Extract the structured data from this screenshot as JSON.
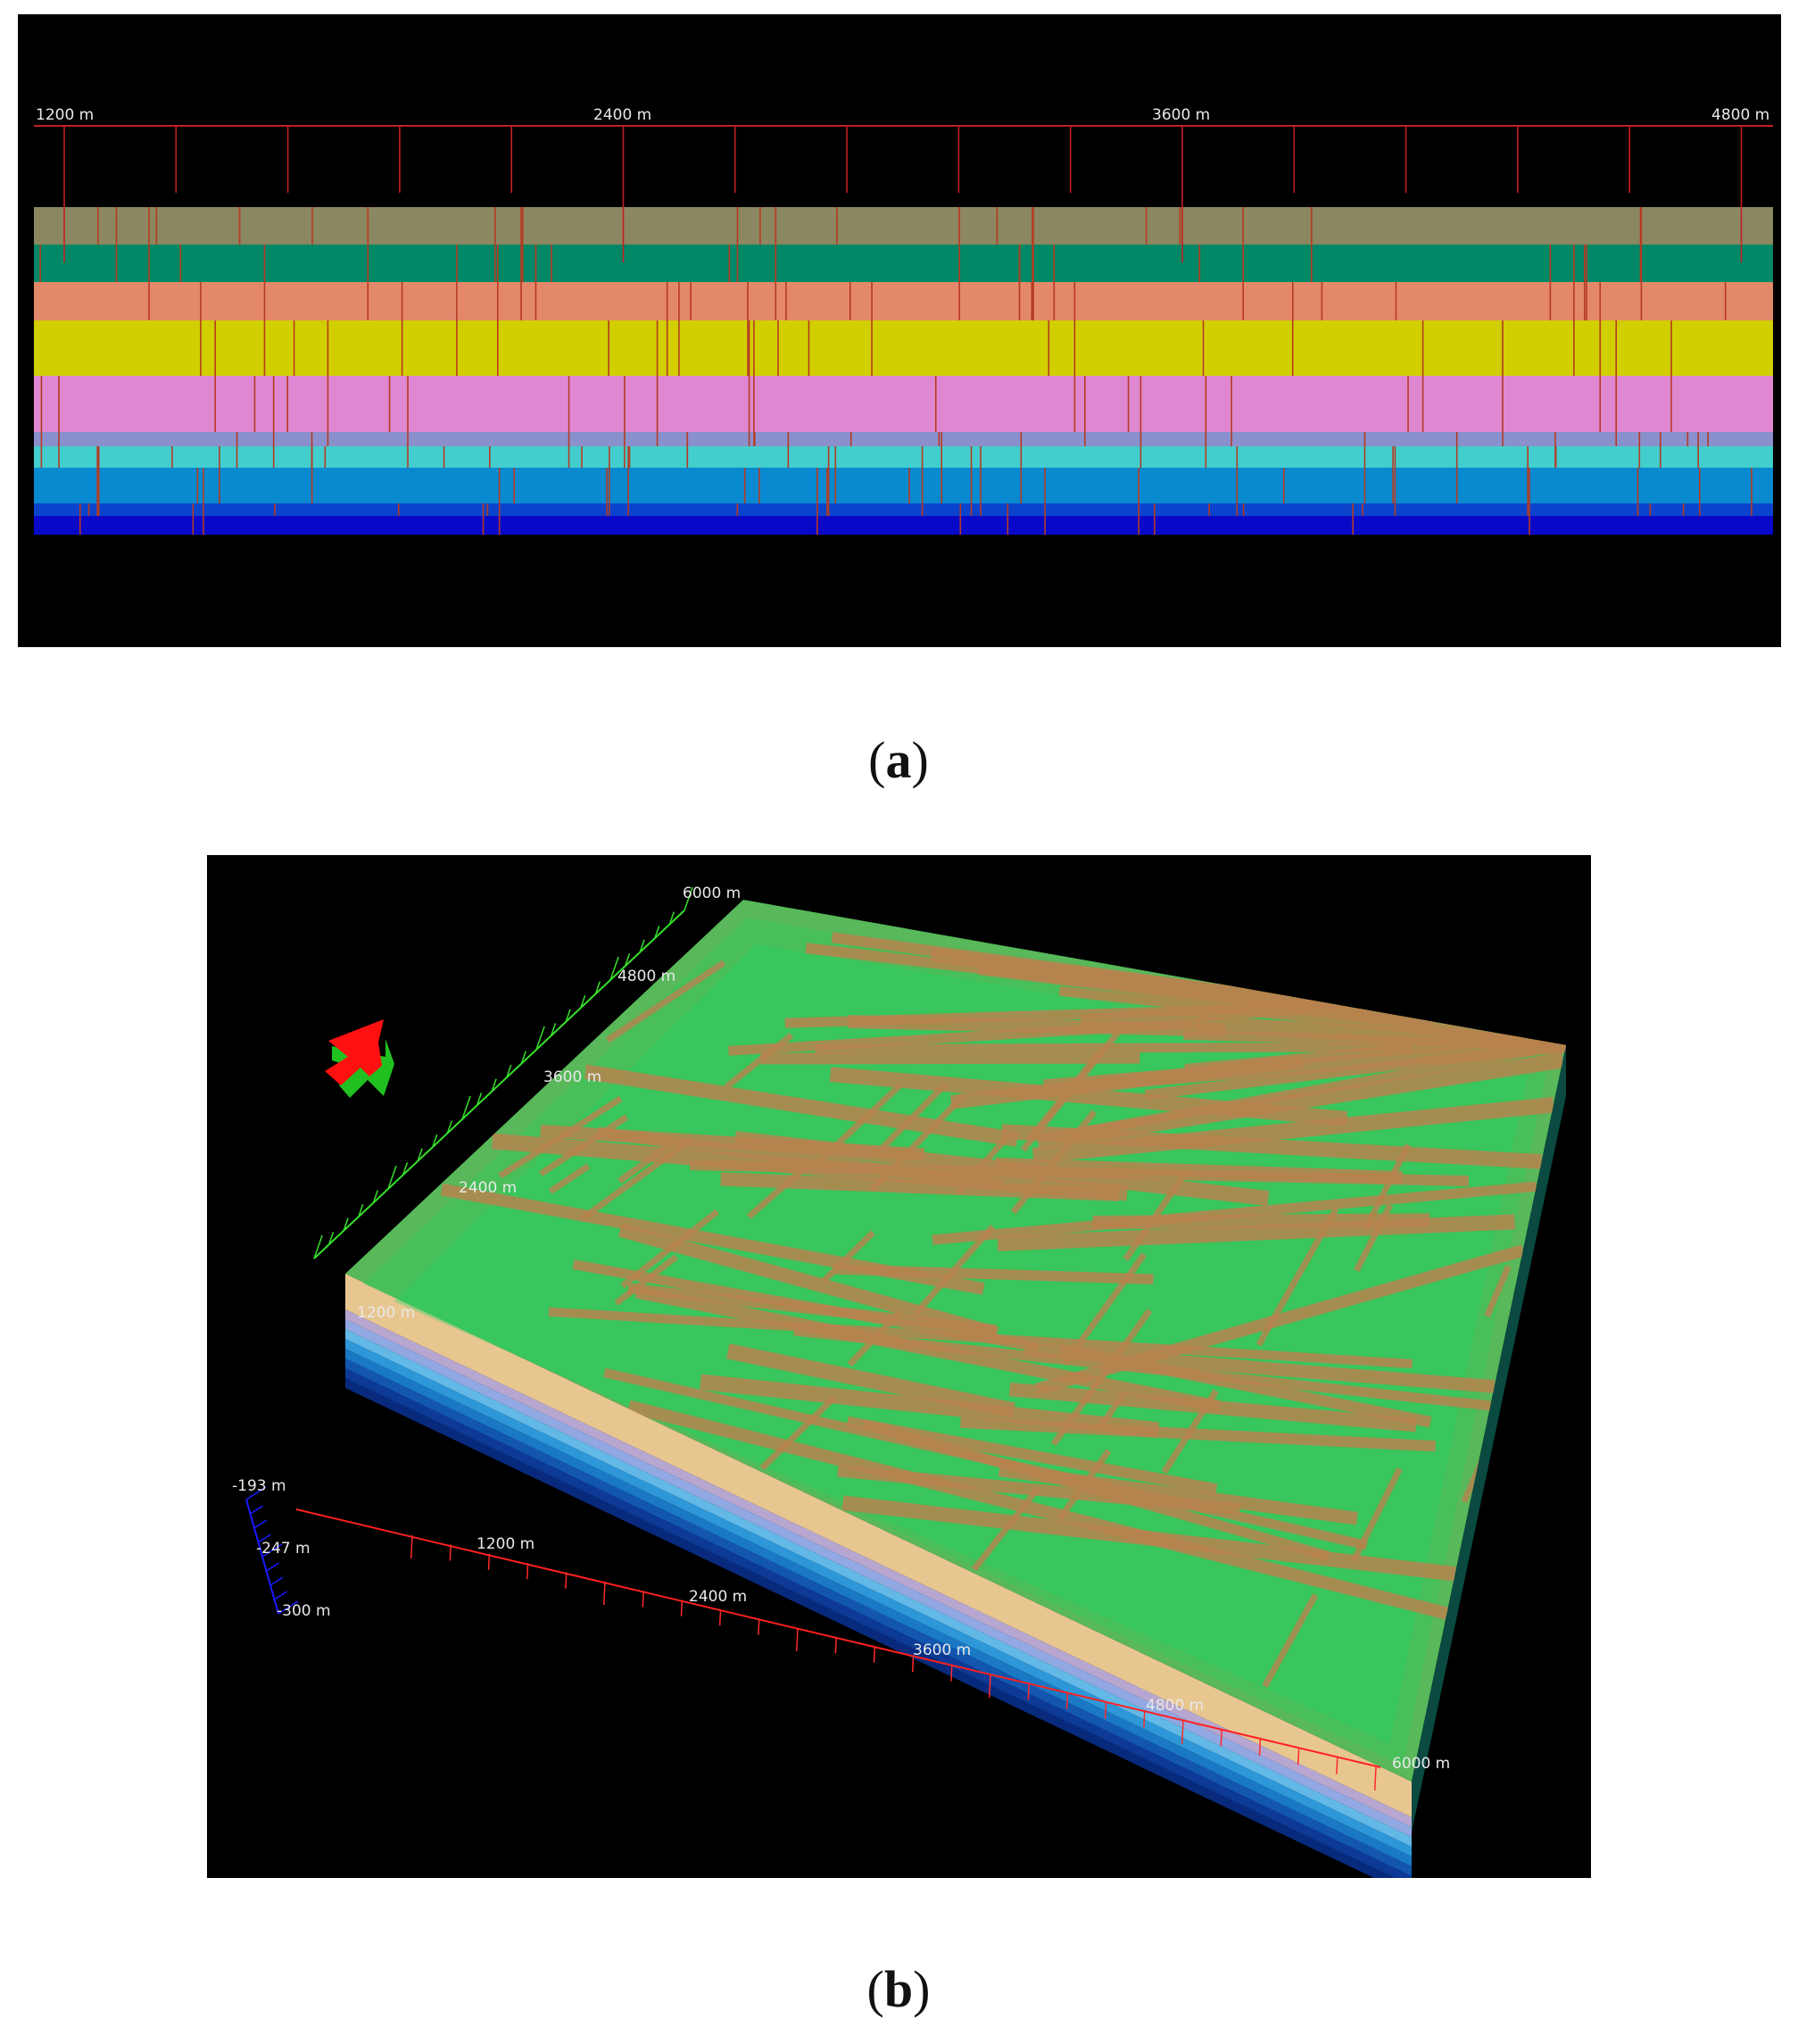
{
  "panel_a": {
    "axis_labels": [
      "1200 m",
      "2400 m",
      "3600 m",
      "4800 m"
    ],
    "layer_colors": [
      "#8b8760",
      "#008866",
      "#e3896a",
      "#d2cf00",
      "#df88d1",
      "#8a90cc",
      "#42cecd",
      "#0889d0",
      "#0a44cc",
      "#0808c8"
    ],
    "fault_color": "#b63a22"
  },
  "panel_b": {
    "y_axis_labels": [
      "1200 m",
      "2400 m",
      "3600 m",
      "4800 m",
      "6000 m"
    ],
    "x_axis_labels": [
      "1200 m",
      "2400 m",
      "3600 m",
      "4800 m",
      "6000 m"
    ],
    "z_axis_labels": [
      "-193 m",
      "-247 m",
      "-300 m"
    ],
    "fault_color": "#b8834e",
    "surface_color": "#4fbc5a"
  },
  "captions": {
    "a_letter": "a",
    "b_letter": "b"
  }
}
